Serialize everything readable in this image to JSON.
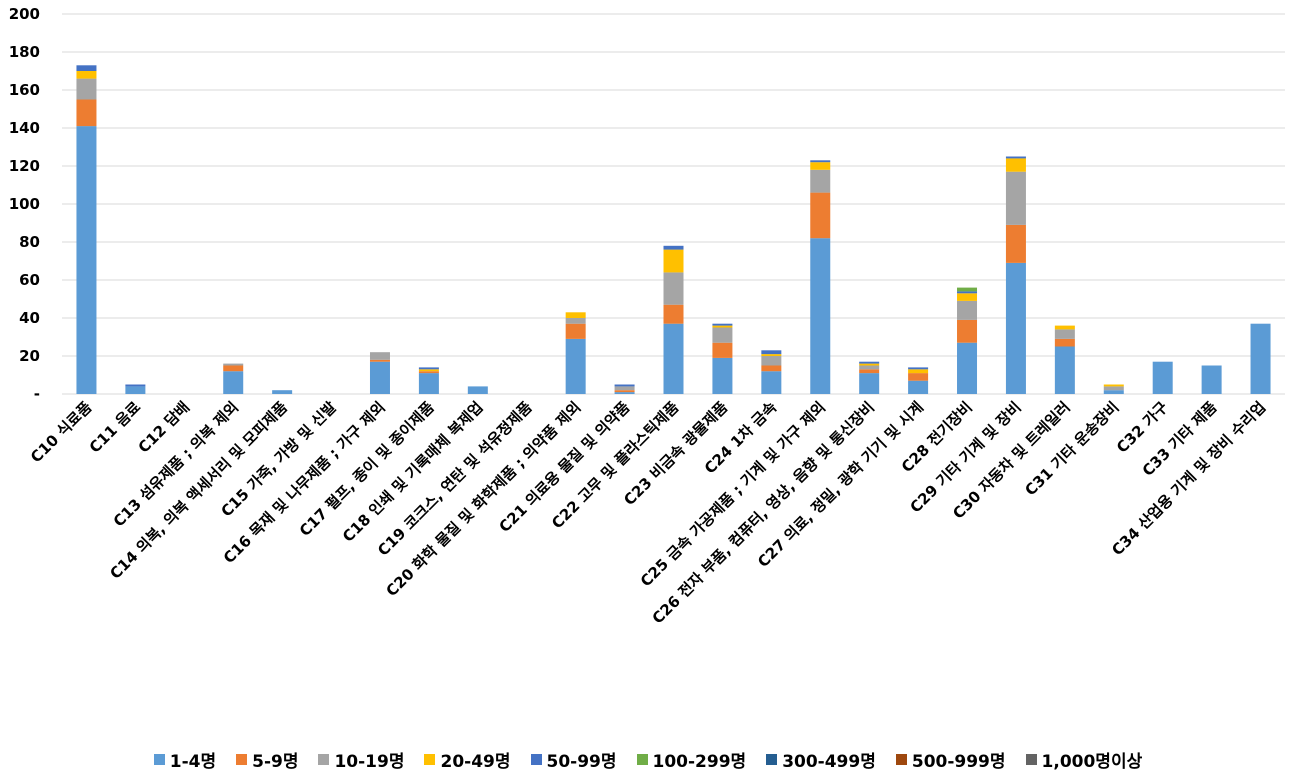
{
  "chart_data": {
    "type": "bar",
    "stacked": true,
    "title": "",
    "xlabel": "",
    "ylabel": "",
    "ylim": [
      0,
      200
    ],
    "yticks": [
      0,
      20,
      40,
      60,
      80,
      100,
      120,
      140,
      160,
      180,
      200
    ],
    "ytick_labels": [
      "-",
      "20",
      "40",
      "60",
      "80",
      "100",
      "120",
      "140",
      "160",
      "180",
      "200"
    ],
    "grid": true,
    "legend_position": "bottom",
    "categories": [
      "C10 식료품",
      "C11 음료",
      "C12 담배",
      "C13 섬유제품 ; 의복 제외",
      "C14 의복, 의복 액세서리 및 모피제품",
      "C15 가죽, 가방 및 신발",
      "C16 목재 및 나무제품 ; 가구 제외",
      "C17 펄프, 종이 및 종이제품",
      "C18 인쇄 및 기록매체 복제업",
      "C19 코크스, 연탄 및 석유정제품",
      "C20 화학 물질 및 화학제품 ; 의약품 제외",
      "C21 의료용 물질 및 의약품",
      "C22 고무 및 플라스틱제품",
      "C23 비금속 광물제품",
      "C24 1차 금속",
      "C25 금속 가공제품 ; 기계 및 가구 제외",
      "C26 전자 부품, 컴퓨터, 영상, 음향 및 통신장비",
      "C27 의료, 정밀, 광학 기기 및 시계",
      "C28 전기장비",
      "C29 기타 기계 및 장비",
      "C30 자동차 및 트레일러",
      "C31 기타 운송장비",
      "C32 가구",
      "C33 기타 제품",
      "C34 산업용 기계 및 장비 수리업"
    ],
    "series": [
      {
        "name": "1-4명",
        "color": "#5b9bd5",
        "values": [
          141,
          4,
          0,
          12,
          2,
          0,
          17,
          11,
          4,
          0,
          29,
          1,
          37,
          19,
          12,
          82,
          11,
          7,
          27,
          69,
          25,
          2,
          17,
          15,
          37
        ]
      },
      {
        "name": "5-9명",
        "color": "#ed7d31",
        "values": [
          14,
          0,
          0,
          3,
          0,
          0,
          1,
          1,
          0,
          0,
          8,
          1,
          10,
          8,
          3,
          24,
          2,
          4,
          12,
          20,
          4,
          0,
          0,
          0,
          0
        ]
      },
      {
        "name": "10-19명",
        "color": "#a5a5a5",
        "values": [
          11,
          0,
          0,
          1,
          0,
          0,
          4,
          0,
          0,
          0,
          3,
          2,
          17,
          8,
          5,
          12,
          2,
          0,
          10,
          28,
          5,
          2,
          0,
          0,
          0
        ]
      },
      {
        "name": "20-49명",
        "color": "#ffc000",
        "values": [
          4,
          0,
          0,
          0,
          0,
          0,
          0,
          1,
          0,
          0,
          3,
          0,
          12,
          1,
          1,
          4,
          1,
          2,
          4,
          7,
          2,
          1,
          0,
          0,
          0
        ]
      },
      {
        "name": "50-99명",
        "color": "#4472c4",
        "values": [
          3,
          1,
          0,
          0,
          0,
          0,
          0,
          1,
          0,
          0,
          0,
          1,
          2,
          1,
          2,
          1,
          1,
          1,
          1,
          1,
          0,
          0,
          0,
          0,
          0
        ]
      },
      {
        "name": "100-299명",
        "color": "#70ad47",
        "values": [
          0,
          0,
          0,
          0,
          0,
          0,
          0,
          0,
          0,
          0,
          0,
          0,
          0,
          0,
          0,
          0,
          0,
          0,
          2,
          0,
          0,
          0,
          0,
          0,
          0
        ]
      },
      {
        "name": "300-499명",
        "color": "#255e91",
        "values": [
          0,
          0,
          0,
          0,
          0,
          0,
          0,
          0,
          0,
          0,
          0,
          0,
          0,
          0,
          0,
          0,
          0,
          0,
          0,
          0,
          0,
          0,
          0,
          0,
          0
        ]
      },
      {
        "name": "500-999명",
        "color": "#9e480e",
        "values": [
          0,
          0,
          0,
          0,
          0,
          0,
          0,
          0,
          0,
          0,
          0,
          0,
          0,
          0,
          0,
          0,
          0,
          0,
          0,
          0,
          0,
          0,
          0,
          0,
          0
        ]
      },
      {
        "name": "1,000명이상",
        "color": "#636363",
        "values": [
          0,
          0,
          0,
          0,
          0,
          0,
          0,
          0,
          0,
          0,
          0,
          0,
          0,
          0,
          0,
          0,
          0,
          0,
          0,
          0,
          0,
          0,
          0,
          0,
          0
        ]
      }
    ]
  }
}
